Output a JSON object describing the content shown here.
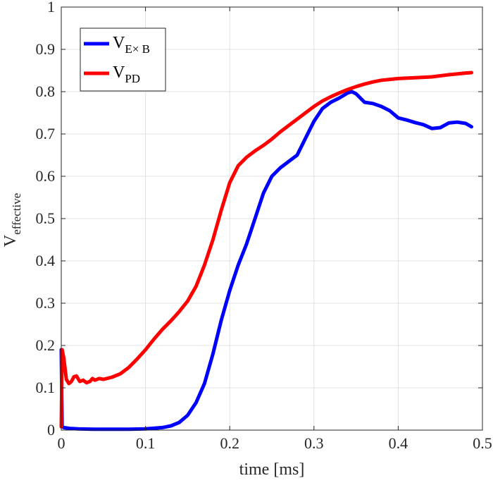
{
  "chart_data": {
    "type": "line",
    "title": "",
    "xlabel": "time [ms]",
    "ylabel": {
      "main": "V",
      "sub": "effective"
    },
    "xlim": [
      0,
      0.5
    ],
    "ylim": [
      0,
      1
    ],
    "xticks": [
      0,
      0.1,
      0.2,
      0.3,
      0.4,
      0.5
    ],
    "yticks": [
      0,
      0.1,
      0.2,
      0.3,
      0.4,
      0.5,
      0.6,
      0.7,
      0.8,
      0.9,
      1
    ],
    "xtick_labels": [
      "0",
      "0.1",
      "0.2",
      "0.3",
      "0.4",
      "0.5"
    ],
    "ytick_labels": [
      "0",
      "0.1",
      "0.2",
      "0.3",
      "0.4",
      "0.5",
      "0.6",
      "0.7",
      "0.8",
      "0.9",
      "1"
    ],
    "grid": true,
    "legend_position": "top-left",
    "series": [
      {
        "name": "V_E×B",
        "label_main": "V",
        "label_sub": "E× B",
        "color": "#0000ff",
        "points": [
          [
            0,
            0.19
          ],
          [
            0.001,
            0.008
          ],
          [
            0.003,
            0.006
          ],
          [
            0.01,
            0.004
          ],
          [
            0.02,
            0.003
          ],
          [
            0.04,
            0.002
          ],
          [
            0.06,
            0.002
          ],
          [
            0.08,
            0.002
          ],
          [
            0.1,
            0.003
          ],
          [
            0.12,
            0.006
          ],
          [
            0.13,
            0.01
          ],
          [
            0.14,
            0.018
          ],
          [
            0.15,
            0.035
          ],
          [
            0.16,
            0.065
          ],
          [
            0.17,
            0.11
          ],
          [
            0.18,
            0.18
          ],
          [
            0.19,
            0.26
          ],
          [
            0.2,
            0.33
          ],
          [
            0.21,
            0.39
          ],
          [
            0.22,
            0.44
          ],
          [
            0.23,
            0.5
          ],
          [
            0.24,
            0.56
          ],
          [
            0.25,
            0.6
          ],
          [
            0.26,
            0.62
          ],
          [
            0.27,
            0.635
          ],
          [
            0.28,
            0.65
          ],
          [
            0.29,
            0.69
          ],
          [
            0.3,
            0.73
          ],
          [
            0.31,
            0.76
          ],
          [
            0.32,
            0.775
          ],
          [
            0.33,
            0.785
          ],
          [
            0.34,
            0.797
          ],
          [
            0.345,
            0.8
          ],
          [
            0.35,
            0.795
          ],
          [
            0.36,
            0.775
          ],
          [
            0.37,
            0.772
          ],
          [
            0.38,
            0.765
          ],
          [
            0.39,
            0.755
          ],
          [
            0.4,
            0.738
          ],
          [
            0.41,
            0.733
          ],
          [
            0.42,
            0.727
          ],
          [
            0.43,
            0.722
          ],
          [
            0.44,
            0.713
          ],
          [
            0.45,
            0.715
          ],
          [
            0.46,
            0.726
          ],
          [
            0.47,
            0.728
          ],
          [
            0.48,
            0.725
          ],
          [
            0.487,
            0.717
          ]
        ]
      },
      {
        "name": "V_PD",
        "label_main": "V",
        "label_sub": "PD",
        "color": "#ff0000",
        "points": [
          [
            0,
            0.008
          ],
          [
            0.001,
            0.19
          ],
          [
            0.003,
            0.17
          ],
          [
            0.006,
            0.12
          ],
          [
            0.009,
            0.11
          ],
          [
            0.012,
            0.115
          ],
          [
            0.015,
            0.126
          ],
          [
            0.018,
            0.128
          ],
          [
            0.022,
            0.115
          ],
          [
            0.026,
            0.118
          ],
          [
            0.03,
            0.112
          ],
          [
            0.034,
            0.115
          ],
          [
            0.037,
            0.122
          ],
          [
            0.04,
            0.118
          ],
          [
            0.045,
            0.122
          ],
          [
            0.05,
            0.12
          ],
          [
            0.06,
            0.125
          ],
          [
            0.07,
            0.133
          ],
          [
            0.08,
            0.148
          ],
          [
            0.09,
            0.168
          ],
          [
            0.1,
            0.19
          ],
          [
            0.11,
            0.215
          ],
          [
            0.12,
            0.238
          ],
          [
            0.13,
            0.258
          ],
          [
            0.14,
            0.28
          ],
          [
            0.15,
            0.305
          ],
          [
            0.16,
            0.34
          ],
          [
            0.17,
            0.39
          ],
          [
            0.18,
            0.45
          ],
          [
            0.19,
            0.52
          ],
          [
            0.2,
            0.585
          ],
          [
            0.21,
            0.625
          ],
          [
            0.22,
            0.645
          ],
          [
            0.23,
            0.66
          ],
          [
            0.24,
            0.673
          ],
          [
            0.25,
            0.688
          ],
          [
            0.26,
            0.705
          ],
          [
            0.27,
            0.72
          ],
          [
            0.28,
            0.735
          ],
          [
            0.29,
            0.75
          ],
          [
            0.3,
            0.765
          ],
          [
            0.31,
            0.778
          ],
          [
            0.32,
            0.788
          ],
          [
            0.33,
            0.797
          ],
          [
            0.34,
            0.805
          ],
          [
            0.35,
            0.812
          ],
          [
            0.36,
            0.818
          ],
          [
            0.37,
            0.823
          ],
          [
            0.38,
            0.827
          ],
          [
            0.39,
            0.829
          ],
          [
            0.4,
            0.831
          ],
          [
            0.42,
            0.833
          ],
          [
            0.44,
            0.835
          ],
          [
            0.46,
            0.84
          ],
          [
            0.48,
            0.844
          ],
          [
            0.487,
            0.845
          ]
        ]
      }
    ]
  }
}
